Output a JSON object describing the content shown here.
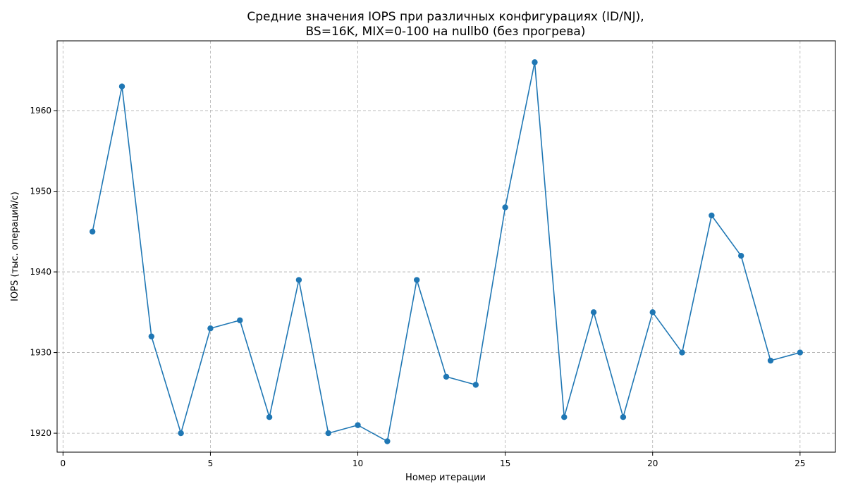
{
  "chart_data": {
    "type": "line",
    "title_lines": [
      "Средние значения IOPS при различных конфигурациях (ID/NJ),",
      "BS=16K, MIX=0-100 на nullb0 (без прогрева)"
    ],
    "xlabel": "Номер итерации",
    "ylabel": "IOPS (тыс. операций/с)",
    "x": [
      1,
      2,
      3,
      4,
      5,
      6,
      7,
      8,
      9,
      10,
      11,
      12,
      13,
      14,
      15,
      16,
      17,
      18,
      19,
      20,
      21,
      22,
      23,
      24,
      25
    ],
    "y": [
      1945,
      1963,
      1932,
      1920,
      1933,
      1934,
      1922,
      1939,
      1920,
      1921,
      1919,
      1939,
      1927,
      1926,
      1948,
      1966,
      1922,
      1935,
      1922,
      1935,
      1930,
      1947,
      1942,
      1929,
      1930
    ],
    "xlim": [
      -0.2,
      26.2
    ],
    "ylim": [
      1917.65,
      1968.65
    ],
    "xticks": [
      0,
      5,
      10,
      15,
      20,
      25
    ],
    "yticks": [
      1920,
      1930,
      1940,
      1950,
      1960
    ],
    "grid": true,
    "line_color": "#1f77b4"
  }
}
